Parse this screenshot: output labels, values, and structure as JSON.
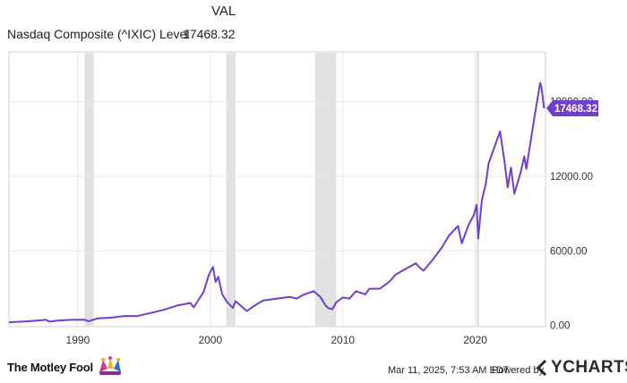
{
  "header": {
    "column_label": "VAL",
    "series_label": "Nasdaq Composite (^IXIC) Level",
    "series_value": "17468.32"
  },
  "chart_data": {
    "type": "line",
    "title": "Nasdaq Composite (^IXIC) Level",
    "xlabel": "",
    "ylabel": "",
    "xlim": [
      1984.8,
      2025.3
    ],
    "ylim": [
      -100,
      22000
    ],
    "x_ticks": [
      1990,
      2000,
      2010,
      2020
    ],
    "x_tick_labels": [
      "1990",
      "2000",
      "2010",
      "2020"
    ],
    "y_ticks": [
      0,
      6000,
      12000,
      18000
    ],
    "y_tick_labels": [
      "0.00",
      "6000.00",
      "12000.00",
      "18000.00"
    ],
    "grid": true,
    "line_color": "#6f3fd0",
    "last_value": 17468.32,
    "last_value_label": "17468.32",
    "recession_bands": [
      [
        1990.5,
        1991.2
      ],
      [
        2001.2,
        2001.9
      ],
      [
        2007.9,
        2009.5
      ],
      [
        2020.1,
        2020.3
      ]
    ],
    "series": [
      {
        "name": "Nasdaq Composite (^IXIC)",
        "x": [
          1984.8,
          1985.5,
          1986.5,
          1987.6,
          1987.85,
          1988.5,
          1989.5,
          1990.5,
          1990.8,
          1991.5,
          1992.5,
          1993.5,
          1994.5,
          1995.5,
          1996.5,
          1997.5,
          1998.5,
          1998.75,
          1999.5,
          1999.9,
          2000.2,
          2000.4,
          2000.6,
          2000.9,
          2001.25,
          2001.7,
          2001.9,
          2002.5,
          2002.75,
          2003.5,
          2004.0,
          2005.0,
          2006.0,
          2006.5,
          2007.0,
          2007.8,
          2008.3,
          2008.7,
          2008.9,
          2009.2,
          2009.5,
          2010.0,
          2010.5,
          2011.0,
          2011.7,
          2012.0,
          2012.8,
          2013.5,
          2014.0,
          2014.5,
          2015.5,
          2015.8,
          2016.1,
          2016.8,
          2017.5,
          2018.0,
          2018.7,
          2018.98,
          2019.5,
          2019.9,
          2020.1,
          2020.22,
          2020.5,
          2020.8,
          2021.0,
          2021.5,
          2021.87,
          2022.2,
          2022.45,
          2022.7,
          2022.95,
          2023.4,
          2023.7,
          2023.85,
          2024.5,
          2024.9,
          2025.0,
          2025.1,
          2025.19
        ],
        "values": [
          250,
          290,
          350,
          450,
          300,
          380,
          450,
          460,
          330,
          560,
          620,
          760,
          750,
          1000,
          1250,
          1600,
          1800,
          1450,
          2700,
          4100,
          4700,
          3500,
          3900,
          2500,
          1900,
          1400,
          1950,
          1400,
          1150,
          1700,
          2000,
          2150,
          2300,
          2150,
          2450,
          2750,
          2300,
          1600,
          1400,
          1300,
          1850,
          2250,
          2150,
          2750,
          2500,
          2950,
          2950,
          3500,
          4100,
          4400,
          5000,
          4650,
          4400,
          5300,
          6300,
          7200,
          8000,
          6600,
          8100,
          8900,
          9700,
          7000,
          10100,
          11400,
          13000,
          14500,
          15600,
          13200,
          11100,
          12700,
          10600,
          12200,
          13600,
          12600,
          17000,
          19500,
          19100,
          18300,
          17468
        ]
      }
    ]
  },
  "footer": {
    "brand": "The Motley Fool",
    "timestamp": "Mar 11, 2025, 7:53 AM EDT",
    "powered_by": "Powered by",
    "provider": "YCHARTS"
  }
}
